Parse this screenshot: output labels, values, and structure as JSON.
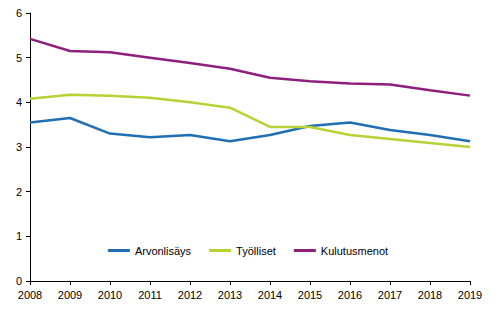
{
  "chart_data": {
    "type": "line",
    "categories": [
      "2008",
      "2009",
      "2010",
      "2011",
      "2012",
      "2013",
      "2014",
      "2015",
      "2016",
      "2017",
      "2018",
      "2019"
    ],
    "series": [
      {
        "name": "Arvonlisäys",
        "color": "#1f6fb2",
        "values": [
          3.55,
          3.65,
          3.3,
          3.22,
          3.27,
          3.13,
          3.27,
          3.47,
          3.55,
          3.38,
          3.27,
          3.13
        ]
      },
      {
        "name": "Työlliset",
        "color": "#b5d334",
        "values": [
          4.08,
          4.17,
          4.15,
          4.1,
          4.0,
          3.88,
          3.45,
          3.45,
          3.27,
          3.18,
          3.09,
          3.0
        ]
      },
      {
        "name": "Kulutusmenot",
        "color": "#8e1f7c",
        "values": [
          5.42,
          5.15,
          5.12,
          5.0,
          4.88,
          4.75,
          4.55,
          4.47,
          4.42,
          4.4,
          4.27,
          4.15
        ]
      }
    ],
    "ylim": [
      0,
      6
    ],
    "yticks": [
      0,
      1,
      2,
      3,
      4,
      5,
      6
    ],
    "grid": false,
    "legend": "bottom"
  }
}
